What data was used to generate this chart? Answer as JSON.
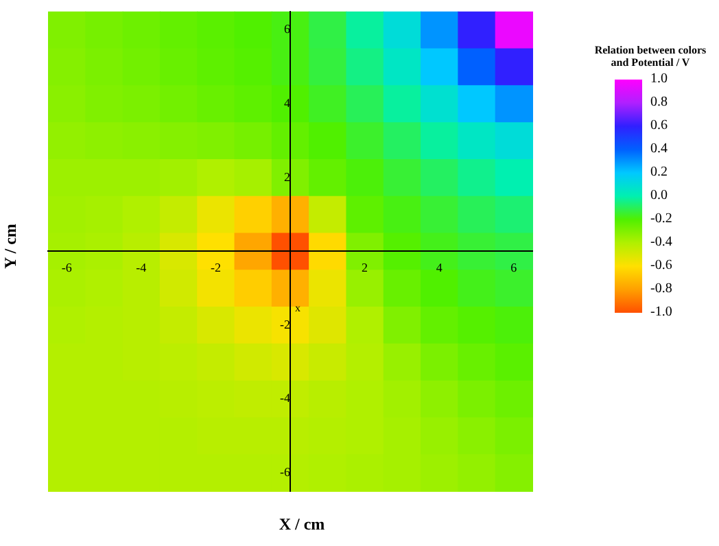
{
  "chart_data": {
    "type": "heatmap",
    "xlabel": "X / cm",
    "ylabel": "Y / cm",
    "clabel": "Relation between colors and  Potential / V",
    "xlim": [
      -6.5,
      6.5
    ],
    "ylim": [
      -6.5,
      6.5
    ],
    "xticks": [
      -6,
      -4,
      -2,
      2,
      4,
      6
    ],
    "yticks": [
      -6,
      -4,
      -2,
      2,
      4,
      6
    ],
    "cells": [
      [
        -0.3,
        -0.28,
        -0.26,
        -0.24,
        -0.22,
        -0.2,
        -0.18,
        -0.12,
        -0.02,
        0.1,
        0.3,
        0.6,
        0.95
      ],
      [
        -0.31,
        -0.29,
        -0.27,
        -0.25,
        -0.23,
        -0.21,
        -0.18,
        -0.13,
        -0.05,
        0.05,
        0.2,
        0.4,
        0.6
      ],
      [
        -0.32,
        -0.3,
        -0.29,
        -0.27,
        -0.25,
        -0.23,
        -0.2,
        -0.16,
        -0.1,
        -0.02,
        0.08,
        0.2,
        0.3
      ],
      [
        -0.34,
        -0.33,
        -0.32,
        -0.31,
        -0.3,
        -0.28,
        -0.24,
        -0.2,
        -0.15,
        -0.09,
        -0.02,
        0.05,
        0.1
      ],
      [
        -0.36,
        -0.36,
        -0.36,
        -0.37,
        -0.4,
        -0.38,
        -0.3,
        -0.24,
        -0.19,
        -0.14,
        -0.09,
        -0.04,
        0.0
      ],
      [
        -0.37,
        -0.38,
        -0.4,
        -0.45,
        -0.55,
        -0.65,
        -0.75,
        -0.45,
        -0.23,
        -0.18,
        -0.14,
        -0.1,
        -0.07
      ],
      [
        -0.38,
        -0.39,
        -0.42,
        -0.5,
        -0.6,
        -0.78,
        -1.0,
        -0.62,
        -0.3,
        -0.21,
        -0.17,
        -0.14,
        -0.12
      ],
      [
        -0.39,
        -0.4,
        -0.42,
        -0.48,
        -0.57,
        -0.66,
        -0.75,
        -0.55,
        -0.35,
        -0.25,
        -0.2,
        -0.17,
        -0.15
      ],
      [
        -0.4,
        -0.41,
        -0.42,
        -0.45,
        -0.5,
        -0.55,
        -0.58,
        -0.52,
        -0.4,
        -0.3,
        -0.24,
        -0.21,
        -0.19
      ],
      [
        -0.41,
        -0.41,
        -0.42,
        -0.43,
        -0.45,
        -0.48,
        -0.5,
        -0.46,
        -0.41,
        -0.35,
        -0.29,
        -0.25,
        -0.22
      ],
      [
        -0.41,
        -0.41,
        -0.41,
        -0.42,
        -0.43,
        -0.44,
        -0.44,
        -0.42,
        -0.4,
        -0.37,
        -0.33,
        -0.29,
        -0.26
      ],
      [
        -0.41,
        -0.41,
        -0.41,
        -0.41,
        -0.42,
        -0.42,
        -0.42,
        -0.41,
        -0.4,
        -0.38,
        -0.35,
        -0.32,
        -0.29
      ],
      [
        -0.41,
        -0.41,
        -0.41,
        -0.41,
        -0.41,
        -0.41,
        -0.41,
        -0.4,
        -0.39,
        -0.38,
        -0.36,
        -0.34,
        -0.31
      ]
    ],
    "clim": [
      -1,
      1
    ],
    "cticks": [
      {
        "value": 1,
        "label": "1.0"
      },
      {
        "value": 0.8,
        "label": "0.8"
      },
      {
        "value": 0.6,
        "label": "0.6"
      },
      {
        "value": 0.4,
        "label": "0.4"
      },
      {
        "value": 0.2,
        "label": "0.2"
      },
      {
        "value": 0,
        "label": "0.0"
      },
      {
        "value": -0.2,
        "label": "-0.2"
      },
      {
        "value": -0.4,
        "label": "-0.4"
      },
      {
        "value": -0.6,
        "label": "-0.6"
      },
      {
        "value": -0.8,
        "label": "-0.8"
      },
      {
        "value": -1,
        "label": "-1.0"
      }
    ],
    "colors": [
      "#ff00ff",
      "#b020ff",
      "#3020ff",
      "#0060ff",
      "#00c8ff",
      "#00f0b0",
      "#50f000",
      "#b0f000",
      "#ffe000",
      "#ffa000",
      "#ff5000"
    ],
    "annotations": [
      "x"
    ]
  }
}
